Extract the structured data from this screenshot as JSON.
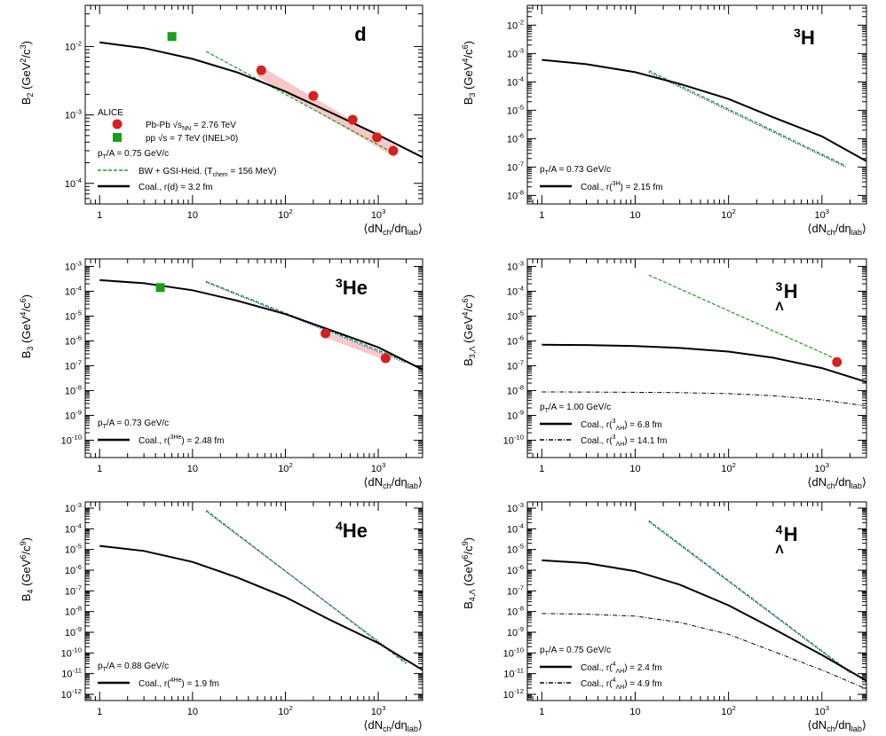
{
  "chart_data": [
    {
      "type": "line",
      "nucleus": "d",
      "ylabel": "B_2 (GeV^2/c^3)",
      "xlabel": "⟨dN_ch/dη_lab⟩",
      "log_x": true,
      "log_y": true,
      "xlim": [
        0.7,
        3000
      ],
      "ylim": [
        5e-05,
        0.04
      ],
      "x_ticks": [
        "1",
        "10",
        "10^2",
        "10^3"
      ],
      "y_ticks": [
        "10^-4",
        "10^-3",
        "10^-2"
      ],
      "legend": {
        "header": "ALICE",
        "entries": [
          "Pb-Pb √s_NN = 2.76 TeV",
          "pp √s = 7 TeV (INEL>0)"
        ],
        "pt_label": "p_T/A = 0.75 GeV/c",
        "model_entries": [
          "BW + GSI-Heid. (T_chem = 156 MeV)",
          "Coal., r(d) = 3.2 fm"
        ]
      },
      "series": [
        {
          "name": "Pb-Pb √s_NN = 2.76 TeV",
          "kind": "points",
          "marker": "circle",
          "color": "#d42020",
          "x": [
            55,
            200,
            530,
            970,
            1450
          ],
          "y": [
            0.0045,
            0.0019,
            0.00085,
            0.00047,
            0.0003
          ]
        },
        {
          "name": "pp √s = 7 TeV (INEL>0)",
          "kind": "points",
          "marker": "square",
          "color": "#1a9e1a",
          "x": [
            6
          ],
          "y": [
            0.014
          ]
        },
        {
          "name": "BW + GSI-Heid. (T_chem = 156 MeV)",
          "kind": "line",
          "style": "dashed",
          "color": "#1a9e1a",
          "x": [
            14,
            1600
          ],
          "y": [
            0.0085,
            0.00026
          ]
        },
        {
          "name": "Coal., r(d) = 3.2 fm",
          "kind": "line",
          "style": "solid",
          "color": "#000000",
          "x": [
            1,
            3,
            10,
            30,
            100,
            300,
            1000,
            3000
          ],
          "y": [
            0.0115,
            0.0095,
            0.0066,
            0.0042,
            0.0022,
            0.0011,
            0.00051,
            0.00024
          ]
        }
      ],
      "bands": [
        {
          "color": "#f4b6b6",
          "x": [
            50,
            1500
          ],
          "y_low": [
            0.0036,
            0.00024
          ],
          "y_high": [
            0.0055,
            0.00036
          ]
        }
      ]
    },
    {
      "type": "line",
      "nucleus": "3H",
      "ylabel": "B_3 (GeV^4/c^6)",
      "xlabel": "⟨dN_ch/dη_lab⟩",
      "log_x": true,
      "log_y": true,
      "xlim": [
        0.7,
        3000
      ],
      "ylim": [
        5e-09,
        0.05
      ],
      "x_ticks": [
        "1",
        "10",
        "10^2",
        "10^3"
      ],
      "y_ticks": [
        "10^-8",
        "10^-7",
        "10^-6",
        "10^-5",
        "10^-4",
        "10^-3",
        "10^-2"
      ],
      "legend": {
        "pt_label": "p_T/A = 0.73 GeV/c",
        "model_entries": [
          "Coal., r(3H) = 2.15 fm"
        ]
      },
      "series": [
        {
          "name": "",
          "kind": "line",
          "style": "dashed",
          "color": "#1a9e1a",
          "x": [
            14,
            1800
          ],
          "y": [
            0.00025,
            1.1e-07
          ]
        },
        {
          "name": "",
          "kind": "line",
          "style": "dotted",
          "color": "#2244cc",
          "x": [
            14,
            1800
          ],
          "y": [
            0.00022,
            1e-07
          ]
        },
        {
          "name": "Coal., r(3H) = 2.15 fm",
          "kind": "line",
          "style": "solid",
          "color": "#000000",
          "x": [
            1,
            3,
            10,
            30,
            100,
            300,
            1000,
            3000
          ],
          "y": [
            0.0006,
            0.00042,
            0.00022,
            8.5e-05,
            2.5e-05,
            5.7e-06,
            1.2e-06,
            1.6e-07
          ]
        }
      ]
    },
    {
      "type": "line",
      "nucleus": "3He",
      "ylabel": "B_3 (GeV^4/c^6)",
      "xlabel": "⟨dN_ch/dη_lab⟩",
      "log_x": true,
      "log_y": true,
      "xlim": [
        0.7,
        3000
      ],
      "ylim": [
        2e-11,
        0.002
      ],
      "x_ticks": [
        "1",
        "10",
        "10^2",
        "10^3"
      ],
      "y_ticks": [
        "10^-10",
        "10^-9",
        "10^-8",
        "10^-7",
        "10^-6",
        "10^-5",
        "10^-4",
        "10^-3"
      ],
      "legend": {
        "pt_label": "p_T/A = 0.73 GeV/c",
        "model_entries": [
          "Coal., r(3He) = 2.48 fm"
        ]
      },
      "series": [
        {
          "name": "",
          "kind": "points",
          "marker": "circle",
          "color": "#d42020",
          "x": [
            270,
            1200
          ],
          "y": [
            2e-06,
            2e-07
          ]
        },
        {
          "name": "",
          "kind": "points",
          "marker": "square",
          "color": "#1a9e1a",
          "x": [
            4.5
          ],
          "y": [
            0.00014
          ]
        },
        {
          "name": "",
          "kind": "line",
          "style": "dashed",
          "color": "#1a9e1a",
          "x": [
            14,
            2000
          ],
          "y": [
            0.00025,
            1.5e-07
          ]
        },
        {
          "name": "",
          "kind": "line",
          "style": "dotted",
          "color": "#2244cc",
          "x": [
            14,
            2000
          ],
          "y": [
            0.00023,
            1.3e-07
          ]
        },
        {
          "name": "Coal., r(3He) = 2.48 fm",
          "kind": "line",
          "style": "solid",
          "color": "#000000",
          "x": [
            1,
            3,
            10,
            30,
            100,
            300,
            1000,
            3000
          ],
          "y": [
            0.00028,
            0.00021,
            0.00011,
            4.2e-05,
            1.2e-05,
            2.8e-06,
            5.5e-07,
            7e-08
          ]
        }
      ],
      "bands": [
        {
          "color": "#f4b6b6",
          "x": [
            250,
            1300
          ],
          "y_low": [
            1.5e-06,
            1.5e-07
          ],
          "y_high": [
            2.6e-06,
            2.6e-07
          ]
        }
      ]
    },
    {
      "type": "line",
      "nucleus": "3ΛH",
      "ylabel": "B_3,Λ (GeV^4/c^6)",
      "xlabel": "⟨dN_ch/dη_lab⟩",
      "log_x": true,
      "log_y": true,
      "xlim": [
        0.7,
        3000
      ],
      "ylim": [
        2e-11,
        0.002
      ],
      "x_ticks": [
        "1",
        "10",
        "10^2",
        "10^3"
      ],
      "y_ticks": [
        "10^-10",
        "10^-9",
        "10^-8",
        "10^-7",
        "10^-6",
        "10^-5",
        "10^-4",
        "10^-3"
      ],
      "legend": {
        "pt_label": "p_T/A = 1.00 GeV/c",
        "model_entries": [
          "Coal., r(3ΛH) = 6.8 fm",
          "Coal., r(3ΛH) = 14.1 fm"
        ]
      },
      "series": [
        {
          "name": "",
          "kind": "points",
          "marker": "circle",
          "color": "#d42020",
          "x": [
            1450
          ],
          "y": [
            1.4e-07
          ]
        },
        {
          "name": "",
          "kind": "line",
          "style": "dashed",
          "color": "#1a9e1a",
          "x": [
            14,
            1450
          ],
          "y": [
            0.00045,
            1.8e-07
          ]
        },
        {
          "name": "Coal., r(3ΛH) = 6.8 fm",
          "kind": "line",
          "style": "solid",
          "color": "#000000",
          "x": [
            1,
            3,
            10,
            30,
            100,
            300,
            1000,
            3000
          ],
          "y": [
            7e-07,
            6.8e-07,
            6.2e-07,
            5.2e-07,
            3.7e-07,
            2.1e-07,
            8e-08,
            2.2e-08
          ]
        },
        {
          "name": "Coal., r(3ΛH) = 14.1 fm",
          "kind": "line",
          "style": "dashdot",
          "color": "#000000",
          "x": [
            1,
            3,
            10,
            30,
            100,
            300,
            1000,
            3000
          ],
          "y": [
            8.8e-09,
            8.7e-09,
            8.5e-09,
            8.2e-09,
            7.5e-09,
            6.2e-09,
            4.2e-09,
            2.4e-09
          ]
        }
      ]
    },
    {
      "type": "line",
      "nucleus": "4He",
      "ylabel": "B_4 (GeV^6/c^9)",
      "xlabel": "⟨dN_ch/dη_lab⟩",
      "log_x": true,
      "log_y": true,
      "xlim": [
        0.7,
        3000
      ],
      "ylim": [
        5e-13,
        0.002
      ],
      "x_ticks": [
        "1",
        "10",
        "10^2",
        "10^3"
      ],
      "y_ticks": [
        "10^-12",
        "10^-11",
        "10^-10",
        "10^-9",
        "10^-8",
        "10^-7",
        "10^-6",
        "10^-5",
        "10^-4",
        "10^-3"
      ],
      "legend": {
        "pt_label": "p_T/A = 0.88 GeV/c",
        "model_entries": [
          "Coal., r(4He) = 1.9 fm"
        ]
      },
      "series": [
        {
          "name": "",
          "kind": "line",
          "style": "dashed",
          "color": "#1a9e1a",
          "x": [
            14,
            2000
          ],
          "y": [
            0.0008,
            3e-11
          ]
        },
        {
          "name": "",
          "kind": "line",
          "style": "dotted",
          "color": "#2244cc",
          "x": [
            14,
            2000
          ],
          "y": [
            0.0007,
            3.5e-11
          ]
        },
        {
          "name": "Coal., r(4He) = 1.9 fm",
          "kind": "line",
          "style": "solid",
          "color": "#000000",
          "x": [
            1,
            3,
            10,
            30,
            100,
            300,
            1000,
            3000
          ],
          "y": [
            1.5e-05,
            8.5e-06,
            2.5e-06,
            4.5e-07,
            5e-08,
            4e-09,
            3e-10,
            1.5e-11
          ]
        }
      ]
    },
    {
      "type": "line",
      "nucleus": "4ΛH",
      "ylabel": "B_4,Λ (GeV^6/c^9)",
      "xlabel": "⟨dN_ch/dη_lab⟩",
      "log_x": true,
      "log_y": true,
      "xlim": [
        0.7,
        3000
      ],
      "ylim": [
        5e-13,
        0.002
      ],
      "x_ticks": [
        "1",
        "10",
        "10^2",
        "10^3"
      ],
      "y_ticks": [
        "10^-12",
        "10^-11",
        "10^-10",
        "10^-9",
        "10^-8",
        "10^-7",
        "10^-6",
        "10^-5",
        "10^-4",
        "10^-3"
      ],
      "legend": {
        "pt_label": "p_T/A = 0.75 GeV/c",
        "model_entries": [
          "Coal., r(4ΛH) = 2.4 fm",
          "Coal., r(4ΛH) = 4.9 fm"
        ]
      },
      "series": [
        {
          "name": "",
          "kind": "line",
          "style": "dashed",
          "color": "#1a9e1a",
          "x": [
            14,
            2000
          ],
          "y": [
            0.00025,
            1.2e-11
          ]
        },
        {
          "name": "",
          "kind": "line",
          "style": "dotted",
          "color": "#2244cc",
          "x": [
            14,
            2000
          ],
          "y": [
            0.00022,
            1.1e-11
          ]
        },
        {
          "name": "Coal., r(4ΛH) = 2.4 fm",
          "kind": "line",
          "style": "solid",
          "color": "#000000",
          "x": [
            1,
            3,
            10,
            30,
            100,
            300,
            1000,
            3000
          ],
          "y": [
            3e-06,
            2.2e-06,
            9e-07,
            2e-07,
            2e-08,
            1.5e-09,
            8e-11,
            4.5e-12
          ]
        },
        {
          "name": "Coal., r(4ΛH) = 4.9 fm",
          "kind": "line",
          "style": "dashdot",
          "color": "#000000",
          "x": [
            1,
            3,
            10,
            30,
            100,
            300,
            1000,
            3000
          ],
          "y": [
            8e-09,
            7.5e-09,
            6e-09,
            3e-09,
            8e-10,
            1.2e-10,
            1.5e-11,
            1.8e-12
          ]
        }
      ]
    }
  ]
}
